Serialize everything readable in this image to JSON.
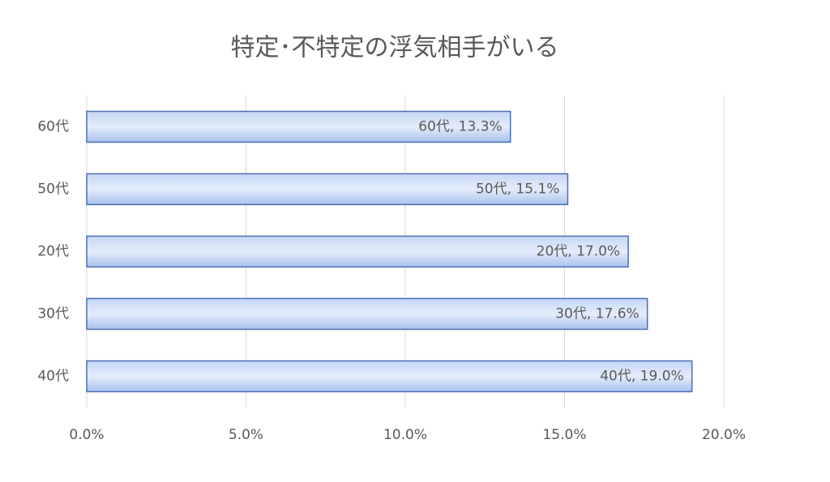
{
  "chart_data": {
    "type": "bar",
    "orientation": "horizontal",
    "title": "特定･不特定の浮気相手がいる",
    "categories": [
      "60代",
      "50代",
      "20代",
      "30代",
      "40代"
    ],
    "values": [
      13.3,
      15.1,
      17.0,
      17.6,
      19.0
    ],
    "value_labels": [
      "60代, 13.3%",
      "50代, 15.1%",
      "20代, 17.0%",
      "30代, 17.6%",
      "40代, 19.0%"
    ],
    "color": "#4a6fb5",
    "xlim": [
      0,
      20
    ],
    "xticks": [
      {
        "value": 0,
        "label": "0.0%"
      },
      {
        "value": 5,
        "label": "5.0%"
      },
      {
        "value": 10,
        "label": "10.0%"
      },
      {
        "value": 15,
        "label": "15.0%"
      },
      {
        "value": 20,
        "label": "20.0%"
      }
    ],
    "grid": true
  }
}
